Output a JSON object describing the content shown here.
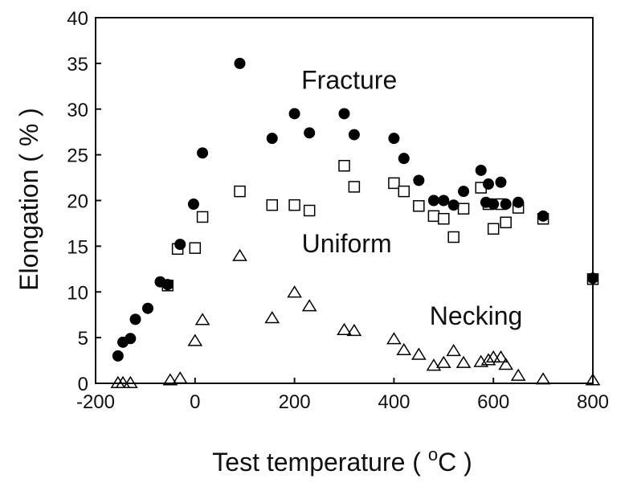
{
  "chart_data": {
    "type": "scatter",
    "title": "",
    "xlabel": "Test temperature ( °C )",
    "xlabel_parts": {
      "before": "Test temperature ( ",
      "degree": "o",
      "after": "C )"
    },
    "ylabel": "Elongation ( % )",
    "xlim": [
      -200,
      800
    ],
    "ylim": [
      0,
      40
    ],
    "xticks": [
      -200,
      0,
      200,
      400,
      600,
      800
    ],
    "yticks": [
      0,
      5,
      10,
      15,
      20,
      25,
      30,
      35,
      40
    ],
    "grid": false,
    "legend": "none",
    "annotations": [
      {
        "text": "Fracture",
        "x": 310,
        "y": 33.2
      },
      {
        "text": "Uniform",
        "x": 305,
        "y": 15.3
      },
      {
        "text": "Necking",
        "x": 565,
        "y": 7.4
      }
    ],
    "series": [
      {
        "marker": "filled-circle",
        "color": "#000000",
        "points": [
          [
            -155,
            3
          ],
          [
            -145,
            4.5
          ],
          [
            -130,
            4.9
          ],
          [
            -120,
            7
          ],
          [
            -95,
            8.2
          ],
          [
            -70,
            11.1
          ],
          [
            -55,
            10.8
          ],
          [
            -30,
            15.2
          ],
          [
            -3,
            19.6
          ],
          [
            15,
            25.2
          ],
          [
            90,
            35
          ],
          [
            155,
            26.8
          ],
          [
            200,
            29.5
          ],
          [
            230,
            27.4
          ],
          [
            300,
            29.5
          ],
          [
            320,
            27.2
          ],
          [
            400,
            26.8
          ],
          [
            420,
            24.6
          ],
          [
            450,
            22.2
          ],
          [
            480,
            20
          ],
          [
            500,
            20
          ],
          [
            520,
            19.5
          ],
          [
            540,
            21
          ],
          [
            575,
            23.3
          ],
          [
            585,
            19.8
          ],
          [
            590,
            21.8
          ],
          [
            600,
            19.6
          ],
          [
            615,
            22
          ],
          [
            625,
            19.6
          ],
          [
            650,
            19.8
          ],
          [
            700,
            18.3
          ],
          [
            800,
            11.5
          ]
        ]
      },
      {
        "marker": "open-square",
        "color": "#000000",
        "points": [
          [
            -55,
            10.7
          ],
          [
            -35,
            14.7
          ],
          [
            0,
            14.8
          ],
          [
            15,
            18.2
          ],
          [
            90,
            21
          ],
          [
            155,
            19.5
          ],
          [
            200,
            19.5
          ],
          [
            230,
            18.9
          ],
          [
            300,
            23.8
          ],
          [
            320,
            21.5
          ],
          [
            400,
            21.9
          ],
          [
            420,
            21
          ],
          [
            450,
            19.4
          ],
          [
            480,
            18.3
          ],
          [
            500,
            18
          ],
          [
            520,
            16
          ],
          [
            540,
            19.1
          ],
          [
            575,
            21.4
          ],
          [
            590,
            19.6
          ],
          [
            600,
            16.9
          ],
          [
            615,
            19.6
          ],
          [
            625,
            17.6
          ],
          [
            650,
            19.2
          ],
          [
            700,
            18
          ],
          [
            800,
            11.4
          ]
        ]
      },
      {
        "marker": "open-triangle",
        "color": "#000000",
        "points": [
          [
            -155,
            0
          ],
          [
            -145,
            0
          ],
          [
            -130,
            0
          ],
          [
            -50,
            0.3
          ],
          [
            -30,
            0.5
          ],
          [
            0,
            4.6
          ],
          [
            15,
            6.9
          ],
          [
            90,
            13.9
          ],
          [
            155,
            7.1
          ],
          [
            200,
            9.9
          ],
          [
            230,
            8.4
          ],
          [
            300,
            5.8
          ],
          [
            320,
            5.7
          ],
          [
            400,
            4.8
          ],
          [
            420,
            3.6
          ],
          [
            450,
            3.1
          ],
          [
            480,
            1.9
          ],
          [
            500,
            2.2
          ],
          [
            520,
            3.5
          ],
          [
            540,
            2.2
          ],
          [
            575,
            2.3
          ],
          [
            590,
            2.5
          ],
          [
            600,
            2.8
          ],
          [
            615,
            2.8
          ],
          [
            625,
            2
          ],
          [
            650,
            0.8
          ],
          [
            700,
            0.4
          ],
          [
            800,
            0.3
          ]
        ]
      }
    ]
  }
}
